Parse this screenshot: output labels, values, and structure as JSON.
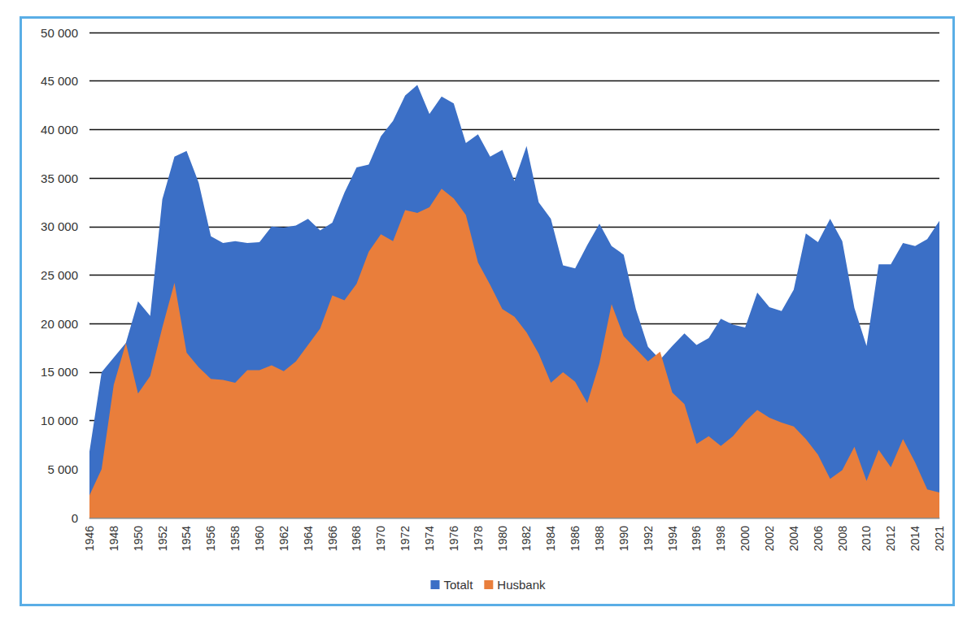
{
  "chart_data": {
    "type": "area",
    "categories": [
      "1946",
      null,
      "1948",
      null,
      "1950",
      null,
      "1952",
      null,
      "1954",
      null,
      "1956",
      null,
      "1958",
      null,
      "1960",
      null,
      "1962",
      null,
      "1964",
      null,
      "1966",
      null,
      "1968",
      null,
      "1970",
      null,
      "1972",
      null,
      "1974",
      null,
      "1976",
      null,
      "1978",
      null,
      "1980",
      null,
      "1982",
      null,
      "1984",
      null,
      "1986",
      null,
      "1988",
      null,
      "1990",
      null,
      "1992",
      null,
      "1994",
      null,
      "1996",
      null,
      "1998",
      null,
      "2000",
      null,
      "2002",
      null,
      "2004",
      null,
      "2006",
      null,
      "2008",
      null,
      "2010",
      null,
      "2012",
      null,
      "2014",
      null,
      "2021"
    ],
    "series": [
      {
        "name": "Totalt",
        "color": "#3b6fc6",
        "values": [
          6800,
          15000,
          16500,
          18000,
          22300,
          20800,
          32800,
          37200,
          37800,
          34500,
          29000,
          28300,
          28500,
          28300,
          28400,
          30000,
          29900,
          30100,
          30800,
          29600,
          30400,
          33500,
          36100,
          36400,
          39300,
          40900,
          43500,
          44600,
          41600,
          43400,
          42700,
          38600,
          39500,
          37200,
          37900,
          34700,
          38300,
          32500,
          30800,
          26000,
          25700,
          28100,
          30300,
          28000,
          27100,
          21500,
          17600,
          16300,
          17700,
          19000,
          17800,
          18500,
          20500,
          19900,
          19600,
          23200,
          21700,
          21300,
          23500,
          29300,
          28400,
          30800,
          28500,
          21600,
          17700,
          26100,
          26100,
          28300,
          28000,
          28700,
          30600
        ]
      },
      {
        "name": "Husbank",
        "color": "#e97e3b",
        "values": [
          2300,
          5000,
          13700,
          18000,
          12800,
          14600,
          19600,
          24200,
          17000,
          15500,
          14300,
          14200,
          13900,
          15200,
          15200,
          15700,
          15100,
          16100,
          17800,
          19500,
          22900,
          22400,
          24100,
          27400,
          29200,
          28500,
          31700,
          31400,
          32000,
          33900,
          32900,
          31200,
          26300,
          24000,
          21500,
          20700,
          19100,
          16900,
          13900,
          15000,
          14000,
          11800,
          15900,
          22000,
          18700,
          17400,
          16100,
          17100,
          12900,
          11700,
          7600,
          8400,
          7400,
          8400,
          9900,
          11100,
          10300,
          9800,
          9400,
          8100,
          6500,
          4000,
          4900,
          7300,
          3800,
          7000,
          5200,
          8100,
          5700,
          2900,
          2600
        ]
      }
    ],
    "ylim": [
      0,
      50000
    ],
    "yticks": [
      0,
      {
        "value": 5000,
        "label": "5 000"
      },
      {
        "value": 10000,
        "label": "10 000"
      },
      {
        "value": 15000,
        "label": "15 000"
      },
      {
        "value": 20000,
        "label": "20 000"
      },
      {
        "value": 25000,
        "label": "25 000"
      },
      {
        "value": 30000,
        "label": "30 000"
      },
      {
        "value": 35000,
        "label": "35 000"
      },
      {
        "value": 40000,
        "label": "40 000"
      },
      {
        "value": 45000,
        "label": "45 000"
      },
      {
        "value": 50000,
        "label": "50 000"
      }
    ],
    "grid": true,
    "legend": "bottom",
    "stacked": false
  }
}
